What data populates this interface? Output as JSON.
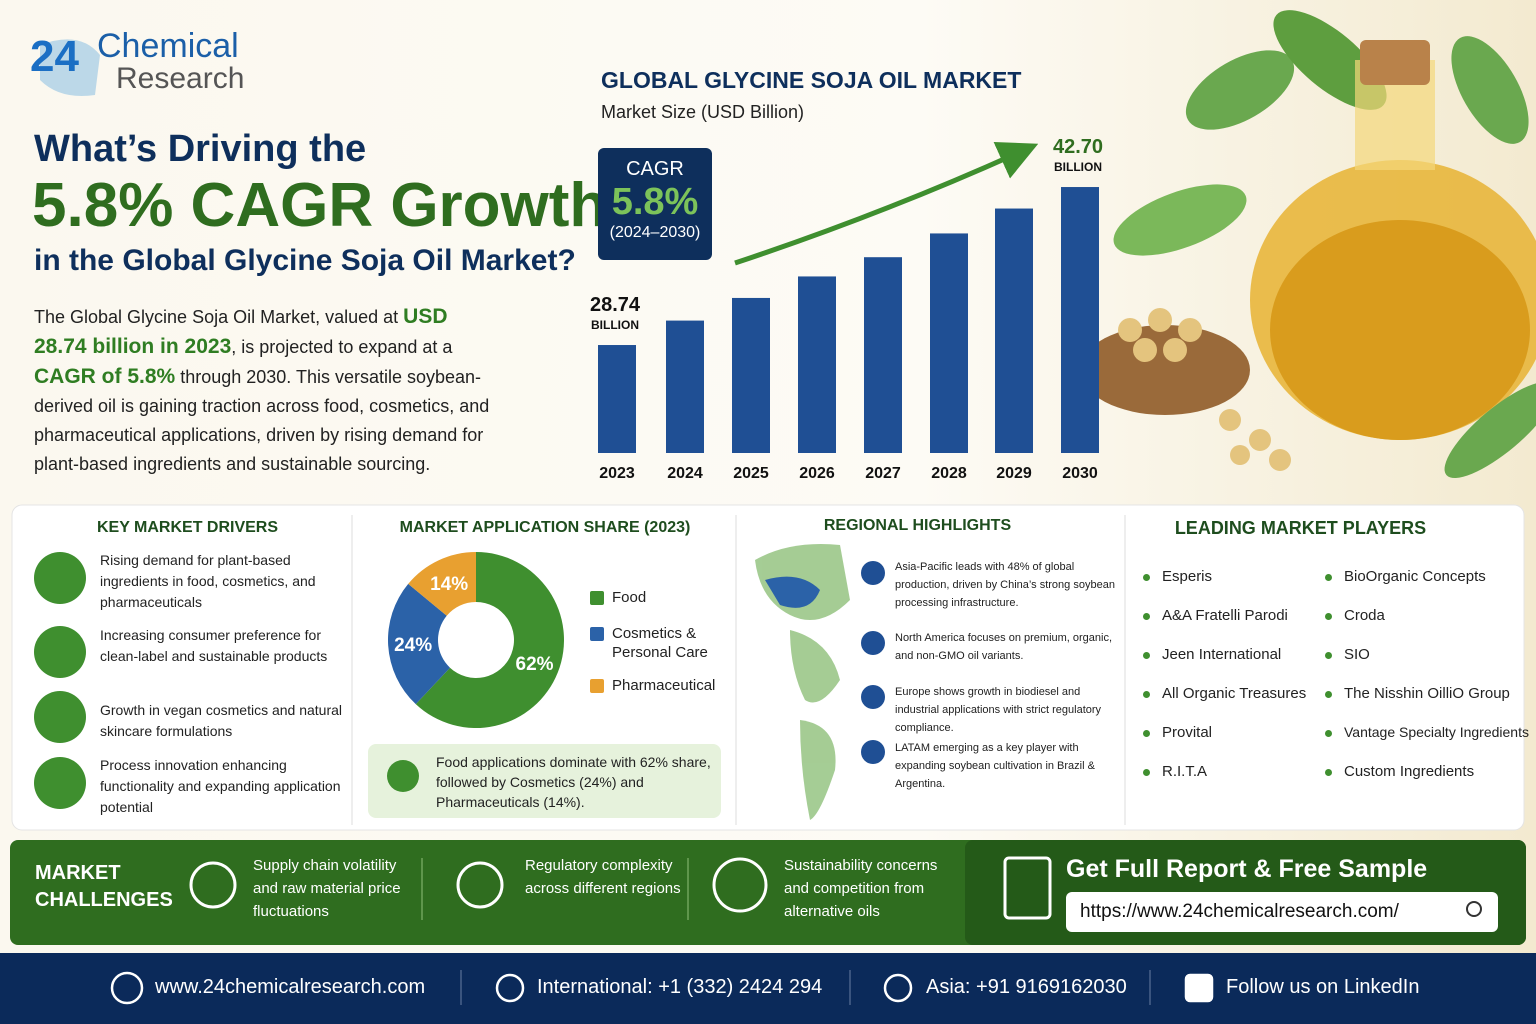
{
  "logo": {
    "number": "24",
    "line1": "Chemical",
    "line2": "Research"
  },
  "headline": {
    "line1": "What’s Driving the",
    "line2": "5.8% CAGR Growth",
    "line3": "in the Global Glycine Soja Oil Market?"
  },
  "intro": [
    "The Global Glycine Soja Oil Market, valued at ",
    "USD 28.74 billion in 2023",
    ", is projected to expand at a ",
    "CAGR of 5.8%",
    " through 2030. This versatile soybean-derived oil is gaining traction across food, cosmetics, and pharmaceutical applications, driven by rising demand for plant-based ingredients and sustainable sourcing."
  ],
  "chart_data": [
    {
      "type": "bar",
      "title": "GLOBAL GLYCINE SOJA OIL MARKET",
      "subtitle": "Market Size (USD Billion)",
      "cagr_label": "CAGR",
      "cagr_value": "5.8%",
      "cagr_period": "(2024–2030)",
      "categories": [
        "2023",
        "2024",
        "2025",
        "2026",
        "2027",
        "2028",
        "2029",
        "2030"
      ],
      "values": [
        28.74,
        30.9,
        32.9,
        34.8,
        36.5,
        38.6,
        40.8,
        42.7
      ],
      "value_labels": [
        "28.74",
        null,
        null,
        null,
        null,
        null,
        null,
        "42.70"
      ],
      "unit_label": "BILLION",
      "color": "#1f4f94",
      "ylim": [
        19.2,
        45
      ]
    },
    {
      "type": "pie",
      "title": "MARKET APPLICATION SHARE (2023)",
      "categories": [
        "Food",
        "Cosmetics & Personal Care",
        "Pharmaceutical"
      ],
      "values": [
        62,
        24,
        14
      ],
      "value_labels": [
        "62%",
        "24%",
        "14%"
      ],
      "colors": [
        "#3f8f2f",
        "#2b62a8",
        "#e8a030"
      ],
      "note": "Food applications dominate with 62% share, followed by Cosmetics (24%) and Pharmaceuticals (14%)."
    }
  ],
  "drivers": {
    "title": "KEY MARKET DRIVERS",
    "items": [
      "Rising demand for plant-based ingredients in food, cosmetics, and pharmaceuticals",
      "Increasing consumer preference for clean-label and sustainable products",
      "Growth in vegan cosmetics and natural skincare formulations",
      "Process innovation enhancing functionality and expanding application potential"
    ]
  },
  "regional": {
    "title": "REGIONAL HIGHLIGHTS",
    "items": [
      "Asia-Pacific leads with 48% of global production, driven by China’s strong soybean processing infrastructure.",
      "North America focuses on premium, organic, and non-GMO oil variants.",
      "Europe shows growth in biodiesel and industrial applications with strict regulatory compliance.",
      "LATAM emerging as a key player with expanding soybean cultivation in Brazil & Argentina."
    ]
  },
  "players": {
    "title": "LEADING MARKET PLAYERS",
    "items": [
      "Esperis",
      "A&A Fratelli Parodi",
      "Jeen International",
      "All Organic Treasures",
      "Provital",
      "R.I.T.A",
      "BioOrganic Concepts",
      "Croda",
      "SIO",
      "The Nisshin OilliO Group",
      "Vantage Specialty Ingredients",
      "Custom Ingredients"
    ]
  },
  "challenges": {
    "title": "MARKET CHALLENGES",
    "items": [
      "Supply chain volatility and raw material price fluctuations",
      "Regulatory complexity across different regions",
      "Sustainability concerns and competition from alternative oils"
    ]
  },
  "cta": {
    "title": "Get Full Report & Free Sample",
    "url": "https://www.24chemicalresearch.com/"
  },
  "footer": [
    "www.24chemicalresearch.com",
    "International: +1 (332) 2424 294",
    "Asia: +91 9169162030",
    "Follow us on LinkedIn"
  ]
}
